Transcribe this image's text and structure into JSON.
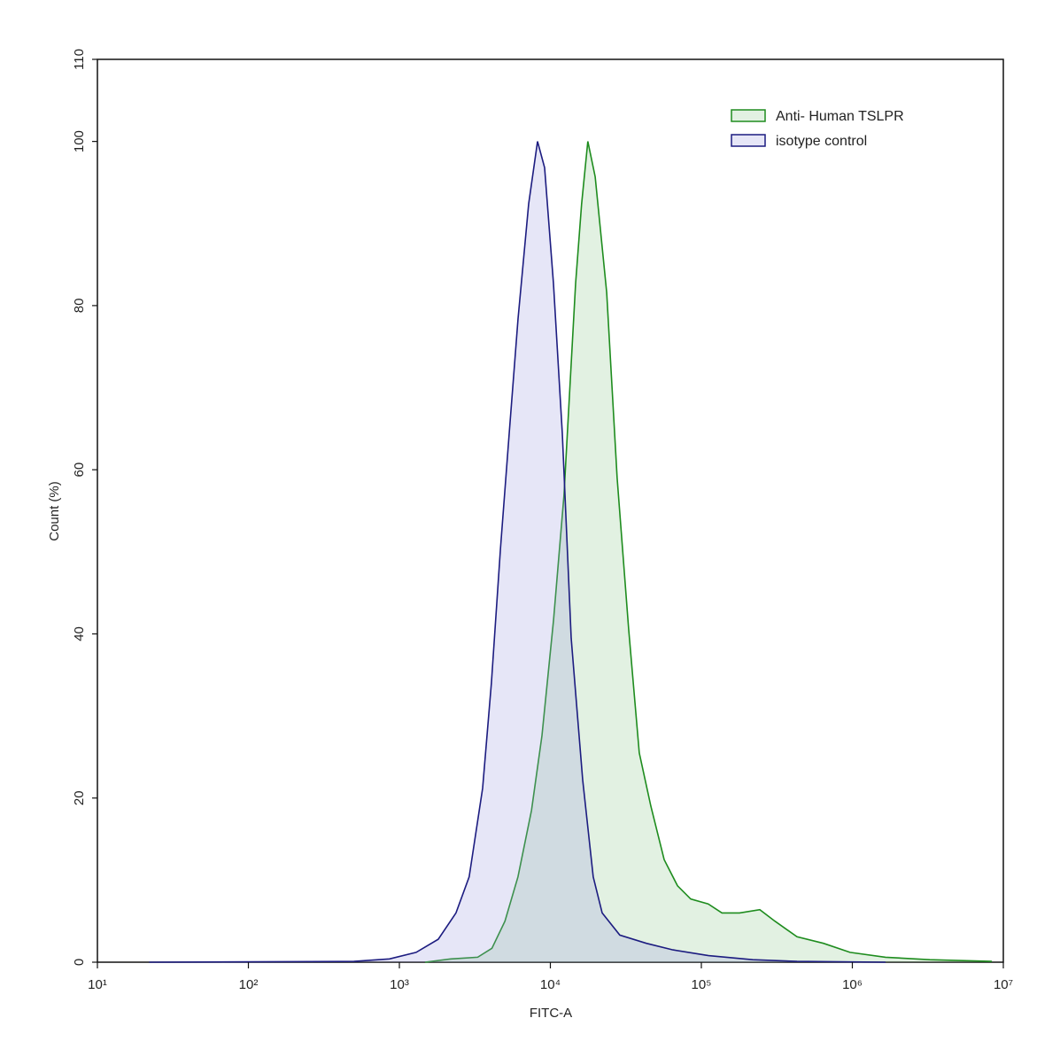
{
  "chart_data": {
    "type": "histogram-overlay",
    "x_label": "FITC-A",
    "y_label": "Count  (%)",
    "xscale": "log",
    "xlim": [
      10,
      10000000
    ],
    "ylim": [
      0,
      110
    ],
    "xticks": [
      {
        "value": 10,
        "label": "10¹"
      },
      {
        "value": 100,
        "label": "10²"
      },
      {
        "value": 1000,
        "label": "10³"
      },
      {
        "value": 10000,
        "label": "10⁴"
      },
      {
        "value": 100000,
        "label": "10⁵"
      },
      {
        "value": 1000000,
        "label": "10⁶"
      },
      {
        "value": 10000000,
        "label": "10⁷"
      }
    ],
    "yticks": [
      0,
      20,
      40,
      60,
      80,
      100,
      110
    ],
    "legend": "upper right",
    "series": [
      {
        "name": "Anti- Human TSLPR",
        "color": "#1e8c1e",
        "fill": "#8cc88c",
        "x": [
          1480,
          2200,
          3300,
          4100,
          5000,
          6100,
          7500,
          8800,
          10500,
          12300,
          14700,
          16100,
          17700,
          19800,
          23600,
          27700,
          33000,
          38800,
          46300,
          56700,
          69500,
          85000,
          111000,
          137000,
          179000,
          244000,
          307000,
          430000,
          644000,
          966000,
          1660000,
          3260000,
          8400000
        ],
        "values": [
          0,
          0.4,
          0.6,
          1.7,
          5,
          10.4,
          18.5,
          27.6,
          41.7,
          56.8,
          82.7,
          92.4,
          100,
          95.7,
          81.6,
          59,
          40.6,
          25.5,
          19,
          12.5,
          9.3,
          7.7,
          7.1,
          6,
          6,
          6.4,
          5,
          3.1,
          2.3,
          1.2,
          0.6,
          0.3,
          0.1
        ]
      },
      {
        "name": "isotype control",
        "color": "#1c1c80",
        "fill": "#9a9ae0",
        "x": [
          22,
          500,
          860,
          1290,
          1810,
          2370,
          2900,
          3560,
          4070,
          4670,
          5340,
          6110,
          7180,
          8220,
          9160,
          10490,
          12000,
          13740,
          16370,
          19230,
          22030,
          28840,
          43250,
          64860,
          111500,
          218800,
          430000,
          1660000
        ],
        "values": [
          0,
          0.1,
          0.4,
          1.2,
          2.8,
          6,
          10.4,
          21.2,
          34,
          50.3,
          64.4,
          78.4,
          92.4,
          100,
          96.8,
          82.7,
          64.4,
          39.5,
          22.2,
          10.4,
          6,
          3.3,
          2.3,
          1.5,
          0.8,
          0.3,
          0.1,
          0
        ]
      }
    ]
  }
}
